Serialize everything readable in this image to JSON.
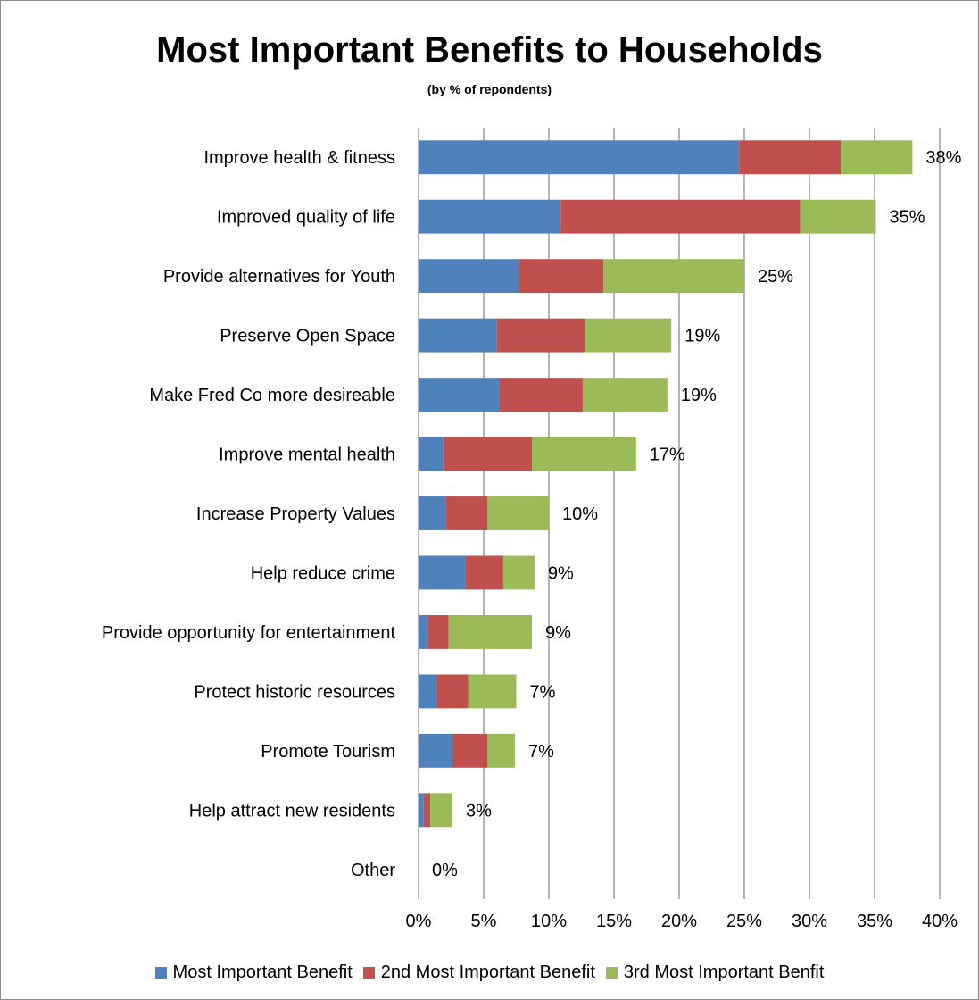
{
  "chart_data": {
    "type": "bar",
    "orientation": "horizontal",
    "stacked": true,
    "title": "Most Important Benefits to Households",
    "subtitle": "(by % of repondents)",
    "categories": [
      "Improve health & fitness",
      "Improved quality of life",
      "Provide alternatives for Youth",
      "Preserve Open Space",
      "Make Fred Co more desireable",
      "Improve mental health",
      "Increase Property Values",
      "Help reduce crime",
      "Provide opportunity for entertainment",
      "Protect historic resources",
      "Promote Tourism",
      "Help attract new residents",
      "Other"
    ],
    "series": [
      {
        "name": "Most Important Benefit",
        "color": "#4f81bd",
        "values": [
          24.6,
          10.9,
          7.7,
          6.0,
          6.2,
          1.9,
          2.1,
          3.6,
          0.7,
          1.4,
          2.6,
          0.4,
          0
        ]
      },
      {
        "name": "2nd Most Important Benefit",
        "color": "#c0504d",
        "values": [
          7.8,
          18.4,
          6.5,
          6.8,
          6.4,
          6.8,
          3.2,
          2.9,
          1.6,
          2.4,
          2.7,
          0.5,
          0
        ]
      },
      {
        "name": "3rd Most Important Benfit",
        "color": "#9bbb59",
        "values": [
          5.5,
          5.8,
          10.8,
          6.6,
          6.5,
          8.0,
          4.7,
          2.4,
          6.4,
          3.7,
          2.1,
          1.7,
          0
        ]
      }
    ],
    "totals": [
      "38%",
      "35%",
      "25%",
      "19%",
      "19%",
      "17%",
      "10%",
      "9%",
      "9%",
      "7%",
      "7%",
      "3%",
      "0%"
    ],
    "xlim": [
      0,
      40
    ],
    "xticks": [
      0,
      5,
      10,
      15,
      20,
      25,
      30,
      35,
      40
    ],
    "xtick_labels": [
      "0%",
      "5%",
      "10%",
      "15%",
      "20%",
      "25%",
      "30%",
      "35%",
      "40%"
    ],
    "grid": "vertical",
    "legend_position": "bottom"
  }
}
